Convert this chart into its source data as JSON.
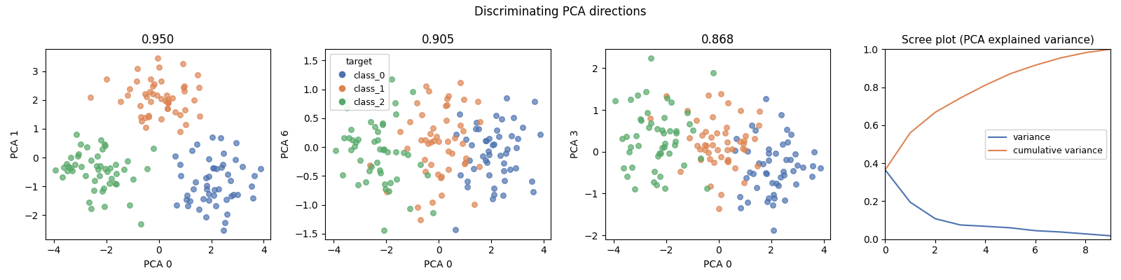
{
  "title": "Discriminating PCA directions",
  "scatter_titles": [
    "0.950",
    "0.905",
    "0.868"
  ],
  "scatter_xlabel": "PCA 0",
  "scatter_ylabels": [
    "PCA 1",
    "PCA 6",
    "PCA 3"
  ],
  "class_names": [
    "class_0",
    "class_1",
    "class_2"
  ],
  "class_colors": [
    "#4c72b0",
    "#dd8452",
    "#55a868"
  ],
  "legend_title": "target",
  "scree_title": "Scree plot (PCA explained variance)",
  "scree_legend": [
    "variance",
    "cumulative variance"
  ],
  "scree_colors": [
    "#4c72b0",
    "#dd8452"
  ],
  "n_components": 10,
  "explained_variance": [
    0.365,
    0.195,
    0.108,
    0.075,
    0.068,
    0.06,
    0.045,
    0.038,
    0.028,
    0.018
  ],
  "random_seed": 42,
  "n_samples_per_class": 50,
  "scatter_alpha": 0.7,
  "scatter_size": 30,
  "figsize": [
    16.0,
    4.0
  ],
  "dpi": 100
}
